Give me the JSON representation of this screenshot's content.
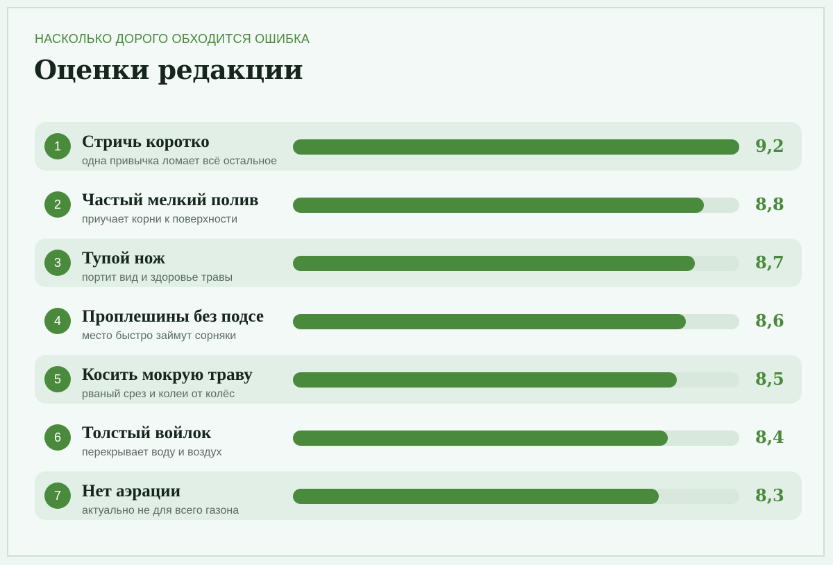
{
  "header": {
    "kicker": "НАСКОЛЬКО ДОРОГО ОБХОДИТСЯ ОШИБКА",
    "title": "Оценки редакции"
  },
  "colors": {
    "accent": "#4a8a3c",
    "track": "#d9e8dd",
    "row_shade": "#e1efe6",
    "background": "#f3f9f6"
  },
  "chart_data": {
    "type": "bar",
    "orientation": "horizontal",
    "xlim": [
      0,
      9.2
    ],
    "items": [
      {
        "rank": "1",
        "label": "Стричь коротко",
        "sub": "одна привычка ломает всё остальное",
        "value": 9.2,
        "value_label": "9,2"
      },
      {
        "rank": "2",
        "label": "Частый мелкий полив",
        "sub": "приучает корни к поверхности",
        "value": 8.8,
        "value_label": "8,8"
      },
      {
        "rank": "3",
        "label": "Тупой нож",
        "sub": "портит вид и здоровье травы",
        "value": 8.7,
        "value_label": "8,7"
      },
      {
        "rank": "4",
        "label": "Проплешины без подсе",
        "sub": "место быстро займут сорняки",
        "value": 8.6,
        "value_label": "8,6"
      },
      {
        "rank": "5",
        "label": "Косить мокрую траву",
        "sub": "рваный срез и колеи от колёс",
        "value": 8.5,
        "value_label": "8,5"
      },
      {
        "rank": "6",
        "label": "Толстый войлок",
        "sub": "перекрывает воду и воздух",
        "value": 8.4,
        "value_label": "8,4"
      },
      {
        "rank": "7",
        "label": "Нет аэрации",
        "sub": "актуально не для всего газона",
        "value": 8.3,
        "value_label": "8,3"
      }
    ]
  }
}
